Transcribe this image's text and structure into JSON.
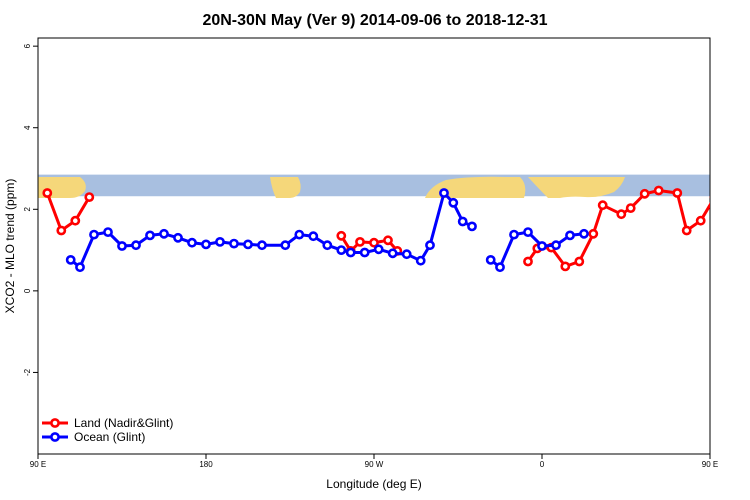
{
  "chart_data": {
    "type": "line",
    "title": "20N-30N May (Ver 9)   2014-09-06 to 2018-12-31",
    "xlabel": "Longitude (deg E)",
    "ylabel": "XCO2 - MLO trend (ppm)",
    "xlim": [
      90,
      450
    ],
    "ylim": [
      -4,
      6.2
    ],
    "grid": false,
    "legend_position": "bottom-left",
    "x_ticks": [
      {
        "value": 90,
        "label": "90 E"
      },
      {
        "value": 180,
        "label": "180"
      },
      {
        "value": 270,
        "label": "90 W"
      },
      {
        "value": 360,
        "label": "0"
      },
      {
        "value": 450,
        "label": "90 E"
      },
      {
        "value": 540,
        "label": "180"
      }
    ],
    "y_ticks": [
      {
        "value": -2,
        "label": "-2"
      },
      {
        "value": 0,
        "label": "0"
      },
      {
        "value": 2,
        "label": "2"
      },
      {
        "value": 4,
        "label": "4"
      },
      {
        "value": 6,
        "label": "6"
      }
    ],
    "map_strip": {
      "y_range": [
        2.32,
        2.85
      ],
      "ocean_color": "#a8bfe0",
      "land_color": "#f5d77a"
    },
    "series": [
      {
        "name": "Land (Nadir&Glint)",
        "color": "#ff0000",
        "segments": [
          [
            [
              95,
              2.4
            ],
            [
              102.5,
              1.48
            ],
            [
              110,
              1.72
            ],
            [
              117.5,
              2.3
            ]
          ],
          [
            [
              252.5,
              1.35
            ],
            [
              257.5,
              0.98
            ],
            [
              262.5,
              1.2
            ],
            [
              270,
              1.18
            ],
            [
              277.5,
              1.24
            ],
            [
              282.5,
              0.98
            ]
          ],
          [
            [
              352.5,
              0.72
            ],
            [
              357.5,
              1.04
            ],
            [
              365,
              1.06
            ],
            [
              372.5,
              0.6
            ],
            [
              380,
              0.72
            ],
            [
              387.5,
              1.4
            ],
            [
              392.5,
              2.1
            ],
            [
              402.5,
              1.88
            ],
            [
              407.5,
              2.03
            ],
            [
              415,
              2.38
            ],
            [
              422.5,
              2.46
            ],
            [
              432.5,
              2.4
            ],
            [
              437.5,
              1.48
            ],
            [
              445,
              1.72
            ],
            [
              452.5,
              2.3
            ]
          ]
        ]
      },
      {
        "name": "Ocean (Glint)",
        "color": "#0000ff",
        "segments": [
          [
            [
              107.5,
              0.76
            ],
            [
              112.5,
              0.58
            ],
            [
              120,
              1.38
            ],
            [
              127.5,
              1.44
            ],
            [
              135,
              1.1
            ],
            [
              142.5,
              1.12
            ],
            [
              150,
              1.36
            ],
            [
              157.5,
              1.4
            ],
            [
              165,
              1.3
            ],
            [
              172.5,
              1.18
            ],
            [
              180,
              1.14
            ],
            [
              187.5,
              1.2
            ],
            [
              195,
              1.16
            ],
            [
              202.5,
              1.14
            ],
            [
              210,
              1.12
            ],
            [
              222.5,
              1.12
            ],
            [
              230,
              1.38
            ],
            [
              237.5,
              1.34
            ],
            [
              245,
              1.12
            ],
            [
              252.5,
              1.0
            ],
            [
              257.5,
              0.94
            ],
            [
              265,
              0.94
            ],
            [
              272.5,
              1.02
            ],
            [
              280,
              0.92
            ],
            [
              287.5,
              0.9
            ],
            [
              295,
              0.74
            ],
            [
              300,
              1.12
            ],
            [
              307.5,
              2.4
            ],
            [
              312.5,
              2.16
            ],
            [
              317.5,
              1.7
            ],
            [
              322.5,
              1.58
            ]
          ],
          [
            [
              332.5,
              0.76
            ],
            [
              337.5,
              0.58
            ],
            [
              345,
              1.38
            ],
            [
              352.5,
              1.44
            ],
            [
              360,
              1.1
            ],
            [
              367.5,
              1.12
            ],
            [
              375,
              1.36
            ],
            [
              382.5,
              1.4
            ]
          ]
        ]
      }
    ]
  }
}
